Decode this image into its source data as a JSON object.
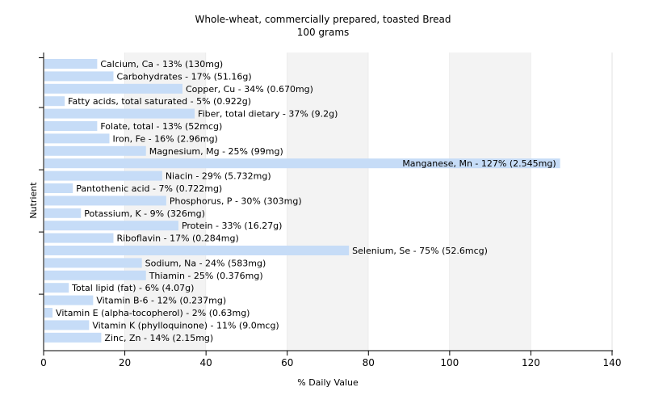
{
  "chart_data": {
    "type": "bar",
    "orientation": "horizontal",
    "title": "Whole-wheat, commercially prepared, toasted Bread",
    "subtitle": "100 grams",
    "xlabel": "% Daily Value",
    "ylabel": "Nutrient",
    "xlim": [
      0,
      140
    ],
    "xticks": [
      0,
      20,
      40,
      60,
      80,
      100,
      120,
      140
    ],
    "grid": "vertical bands",
    "bar_color": "#c6dcf7",
    "categories": [
      "Calcium, Ca",
      "Carbohydrates",
      "Copper, Cu",
      "Fatty acids, total saturated",
      "Fiber, total dietary",
      "Folate, total",
      "Iron, Fe",
      "Magnesium, Mg",
      "Manganese, Mn",
      "Niacin",
      "Pantothenic acid",
      "Phosphorus, P",
      "Potassium, K",
      "Protein",
      "Riboflavin",
      "Selenium, Se",
      "Sodium, Na",
      "Thiamin",
      "Total lipid (fat)",
      "Vitamin B-6",
      "Vitamin E (alpha-tocopherol)",
      "Vitamin K (phylloquinone)",
      "Zinc, Zn"
    ],
    "values": [
      13,
      17,
      34,
      5,
      37,
      13,
      16,
      25,
      127,
      29,
      7,
      30,
      9,
      33,
      17,
      75,
      24,
      25,
      6,
      12,
      2,
      11,
      14
    ],
    "labels": [
      "Calcium, Ca - 13% (130mg)",
      "Carbohydrates - 17% (51.16g)",
      "Copper, Cu - 34% (0.670mg)",
      "Fatty acids, total saturated - 5% (0.922g)",
      "Fiber, total dietary - 37% (9.2g)",
      "Folate, total - 13% (52mcg)",
      "Iron, Fe - 16% (2.96mg)",
      "Magnesium, Mg - 25% (99mg)",
      "Manganese, Mn - 127% (2.545mg)",
      "Niacin - 29% (5.732mg)",
      "Pantothenic acid - 7% (0.722mg)",
      "Phosphorus, P - 30% (303mg)",
      "Potassium, K - 9% (326mg)",
      "Protein - 33% (16.27g)",
      "Riboflavin - 17% (0.284mg)",
      "Selenium, Se - 75% (52.6mcg)",
      "Sodium, Na - 24% (583mg)",
      "Thiamin - 25% (0.376mg)",
      "Total lipid (fat) - 6% (4.07g)",
      "Vitamin B-6 - 12% (0.237mg)",
      "Vitamin E (alpha-tocopherol) - 2% (0.63mg)",
      "Vitamin K (phylloquinone) - 11% (9.0mcg)",
      "Zinc, Zn - 14% (2.15mg)"
    ]
  }
}
